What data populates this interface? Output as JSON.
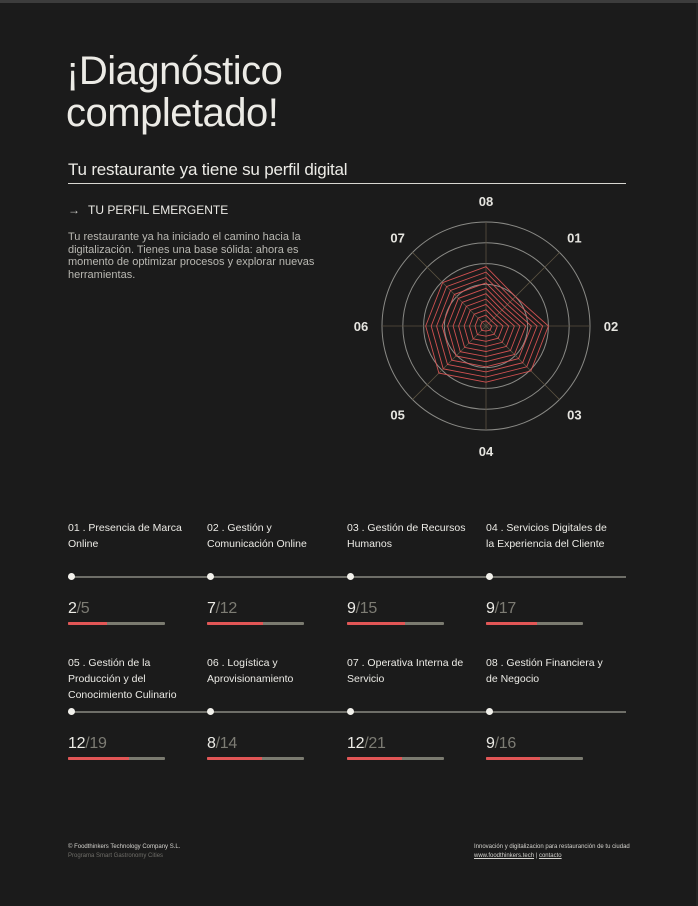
{
  "header": {
    "title_line1": "¡Diagnóstico",
    "title_line2": "completado!",
    "subtitle": "Tu restaurante ya tiene su perfil digital"
  },
  "profile": {
    "arrow_icon": "→",
    "heading": "TU PERFIL EMERGENTE",
    "description": "Tu restaurante ya ha iniciado el camino hacia la digitalización. Tienes una base sólida: ahora es momento de optimizar procesos y explorar nuevas herramientas."
  },
  "colors": {
    "background": "#1b1b1b",
    "accent_red": "#e25656",
    "bar_track": "#7b7b70",
    "text": "#ecebe6",
    "muted": "#7d7c74"
  },
  "chart_data": {
    "type": "radar",
    "title": "",
    "axes": [
      "01",
      "02",
      "03",
      "04",
      "05",
      "06",
      "07",
      "08"
    ],
    "axis_angles_deg": {
      "08": 0,
      "01": 45,
      "02": 90,
      "03": 135,
      "04": 180,
      "05": 225,
      "06": 270,
      "07": 315
    },
    "outer_polygon_relative_radius": [
      0.4,
      0.6,
      0.61,
      0.54,
      0.64,
      0.58,
      0.59,
      0.57
    ],
    "nested_polygon_count": 11,
    "grid_circles_relative": [
      0.4,
      0.6,
      0.8,
      1.0
    ],
    "series_color": "#e25656",
    "scores": [
      {
        "axis": "01",
        "value": 2,
        "max": 5
      },
      {
        "axis": "02",
        "value": 7,
        "max": 12
      },
      {
        "axis": "03",
        "value": 9,
        "max": 15
      },
      {
        "axis": "04",
        "value": 9,
        "max": 17
      },
      {
        "axis": "05",
        "value": 12,
        "max": 19
      },
      {
        "axis": "06",
        "value": 8,
        "max": 14
      },
      {
        "axis": "07",
        "value": 12,
        "max": 21
      },
      {
        "axis": "08",
        "value": 9,
        "max": 16
      }
    ]
  },
  "categories": [
    {
      "num": "01",
      "name": "01 . Presencia de Marca Online",
      "score": "2",
      "max": "/5",
      "pct": 40
    },
    {
      "num": "02",
      "name": "02 . Gestión y Comunicación Online",
      "score": "7",
      "max": "/12",
      "pct": 58
    },
    {
      "num": "03",
      "name": "03 . Gestión de Recursos Humanos",
      "score": "9",
      "max": "/15",
      "pct": 60
    },
    {
      "num": "04",
      "name": "04 . Servicios Digitales de la Experiencia del Cliente",
      "score": "9",
      "max": "/17",
      "pct": 53
    },
    {
      "num": "05",
      "name": "05 . Gestión de la Producción y del Conocimiento Culinario",
      "score": "12",
      "max": "/19",
      "pct": 63
    },
    {
      "num": "06",
      "name": "06 . Logística y Aprovisionamiento",
      "score": "8",
      "max": "/14",
      "pct": 57
    },
    {
      "num": "07",
      "name": "07 . Operativa Interna de Servicio",
      "score": "12",
      "max": "/21",
      "pct": 57
    },
    {
      "num": "08",
      "name": "08 . Gestión Financiera y de Negocio",
      "score": "9",
      "max": "/16",
      "pct": 56
    }
  ],
  "footer": {
    "copyright": "© Foodthinkers Technology Company S.L.",
    "program": "Programa Smart Gastronomy Cities",
    "tagline": "Innovación y digitalizacion para restauranción de tu ciudad",
    "website_link": "www.foodthinkers.tech",
    "separator": " | ",
    "contact_link": "contacto"
  }
}
